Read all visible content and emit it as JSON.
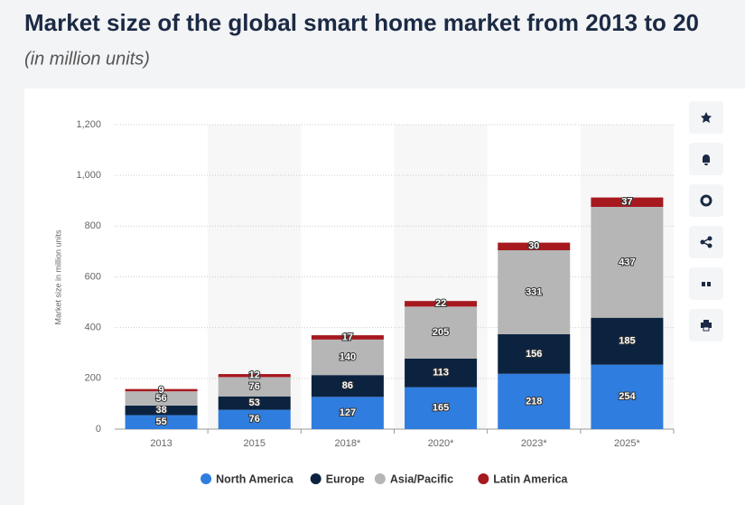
{
  "chart_data": {
    "type": "stacked-bar",
    "title": "Market size of the global smart home market from 2013 to 20",
    "subtitle": "(in million units)",
    "y_label": "Market size in million units",
    "categories": [
      "2013",
      "2015",
      "2018*",
      "2020*",
      "2023*",
      "2025*"
    ],
    "series": [
      {
        "name": "North America",
        "color": "#2f7ddf",
        "values": [
          55,
          76,
          127,
          165,
          218,
          254
        ]
      },
      {
        "name": "Europe",
        "color": "#0c2340",
        "values": [
          38,
          53,
          86,
          113,
          156,
          185
        ]
      },
      {
        "name": "Asia/Pacific",
        "color": "#b6b6b6",
        "values": [
          56,
          76,
          140,
          205,
          331,
          437
        ]
      },
      {
        "name": "Latin America",
        "color": "#a6191e",
        "values": [
          9,
          12,
          17,
          22,
          30,
          37
        ]
      }
    ],
    "ylim": [
      0,
      1200
    ],
    "yticks": [
      0,
      200,
      400,
      600,
      800,
      {
        "value": 1000,
        "label": "1,000"
      },
      {
        "value": 1200,
        "label": "1,200"
      }
    ],
    "grid": true,
    "legend": "bottom"
  }
}
